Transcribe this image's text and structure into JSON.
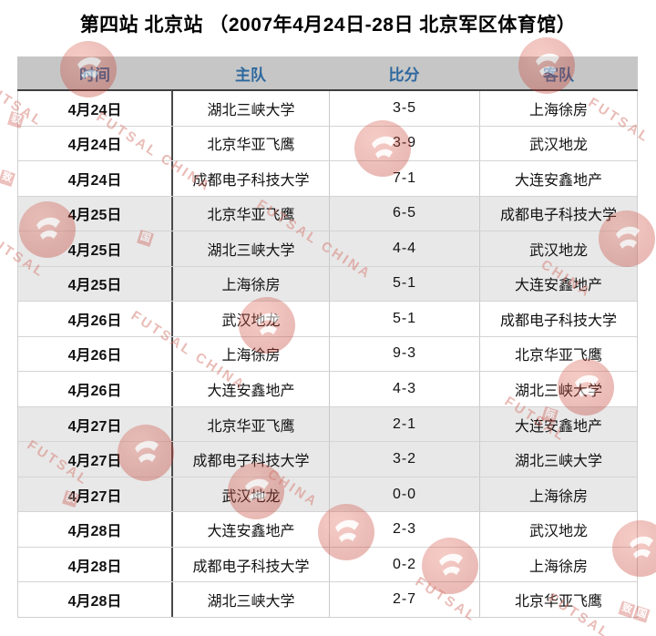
{
  "page_title": "第四站 北京站 （2007年4月24日-28日 北京军区体育馆）",
  "table": {
    "columns": [
      "时间",
      "主队",
      "比分",
      "客队"
    ],
    "rows": [
      {
        "date": "4月24日",
        "home": "湖北三峡大学",
        "score": "3-5",
        "away": "上海徐房"
      },
      {
        "date": "4月24日",
        "home": "北京华亚飞鹰",
        "score": "3-9",
        "away": "武汉地龙"
      },
      {
        "date": "4月24日",
        "home": "成都电子科技大学",
        "score": "7-1",
        "away": "大连安鑫地产"
      },
      {
        "date": "4月25日",
        "home": "北京华亚飞鹰",
        "score": "6-5",
        "away": "成都电子科技大学"
      },
      {
        "date": "4月25日",
        "home": "湖北三峡大学",
        "score": "4-4",
        "away": "武汉地龙"
      },
      {
        "date": "4月25日",
        "home": "上海徐房",
        "score": "5-1",
        "away": "大连安鑫地产"
      },
      {
        "date": "4月26日",
        "home": "武汉地龙",
        "score": "5-1",
        "away": "成都电子科技大学"
      },
      {
        "date": "4月26日",
        "home": "上海徐房",
        "score": "9-3",
        "away": "北京华亚飞鹰"
      },
      {
        "date": "4月26日",
        "home": "大连安鑫地产",
        "score": "4-3",
        "away": "湖北三峡大学"
      },
      {
        "date": "4月27日",
        "home": "北京华亚飞鹰",
        "score": "2-1",
        "away": "大连安鑫地产"
      },
      {
        "date": "4月27日",
        "home": "成都电子科技大学",
        "score": "3-2",
        "away": "湖北三峡大学"
      },
      {
        "date": "4月27日",
        "home": "武汉地龙",
        "score": "0-0",
        "away": "上海徐房"
      },
      {
        "date": "4月28日",
        "home": "大连安鑫地产",
        "score": "2-3",
        "away": "武汉地龙"
      },
      {
        "date": "4月28日",
        "home": "成都电子科技大学",
        "score": "0-2",
        "away": "上海徐房"
      },
      {
        "date": "4月28日",
        "home": "湖北三峡大学",
        "score": "2-7",
        "away": "北京华亚飞鹰"
      }
    ]
  },
  "watermark": {
    "brand_word_1": "FUTSAL",
    "brand_word_2": "CHINA",
    "stamp_chars": [
      "驭",
      "致",
      "国",
      "际"
    ],
    "circle_color": "#c23327",
    "text_color": "#d57a6f"
  },
  "colors": {
    "header_bg": "#c6c6c6",
    "header_text": "#2e689e",
    "shaded_row_bg": "#e8e8e8"
  }
}
